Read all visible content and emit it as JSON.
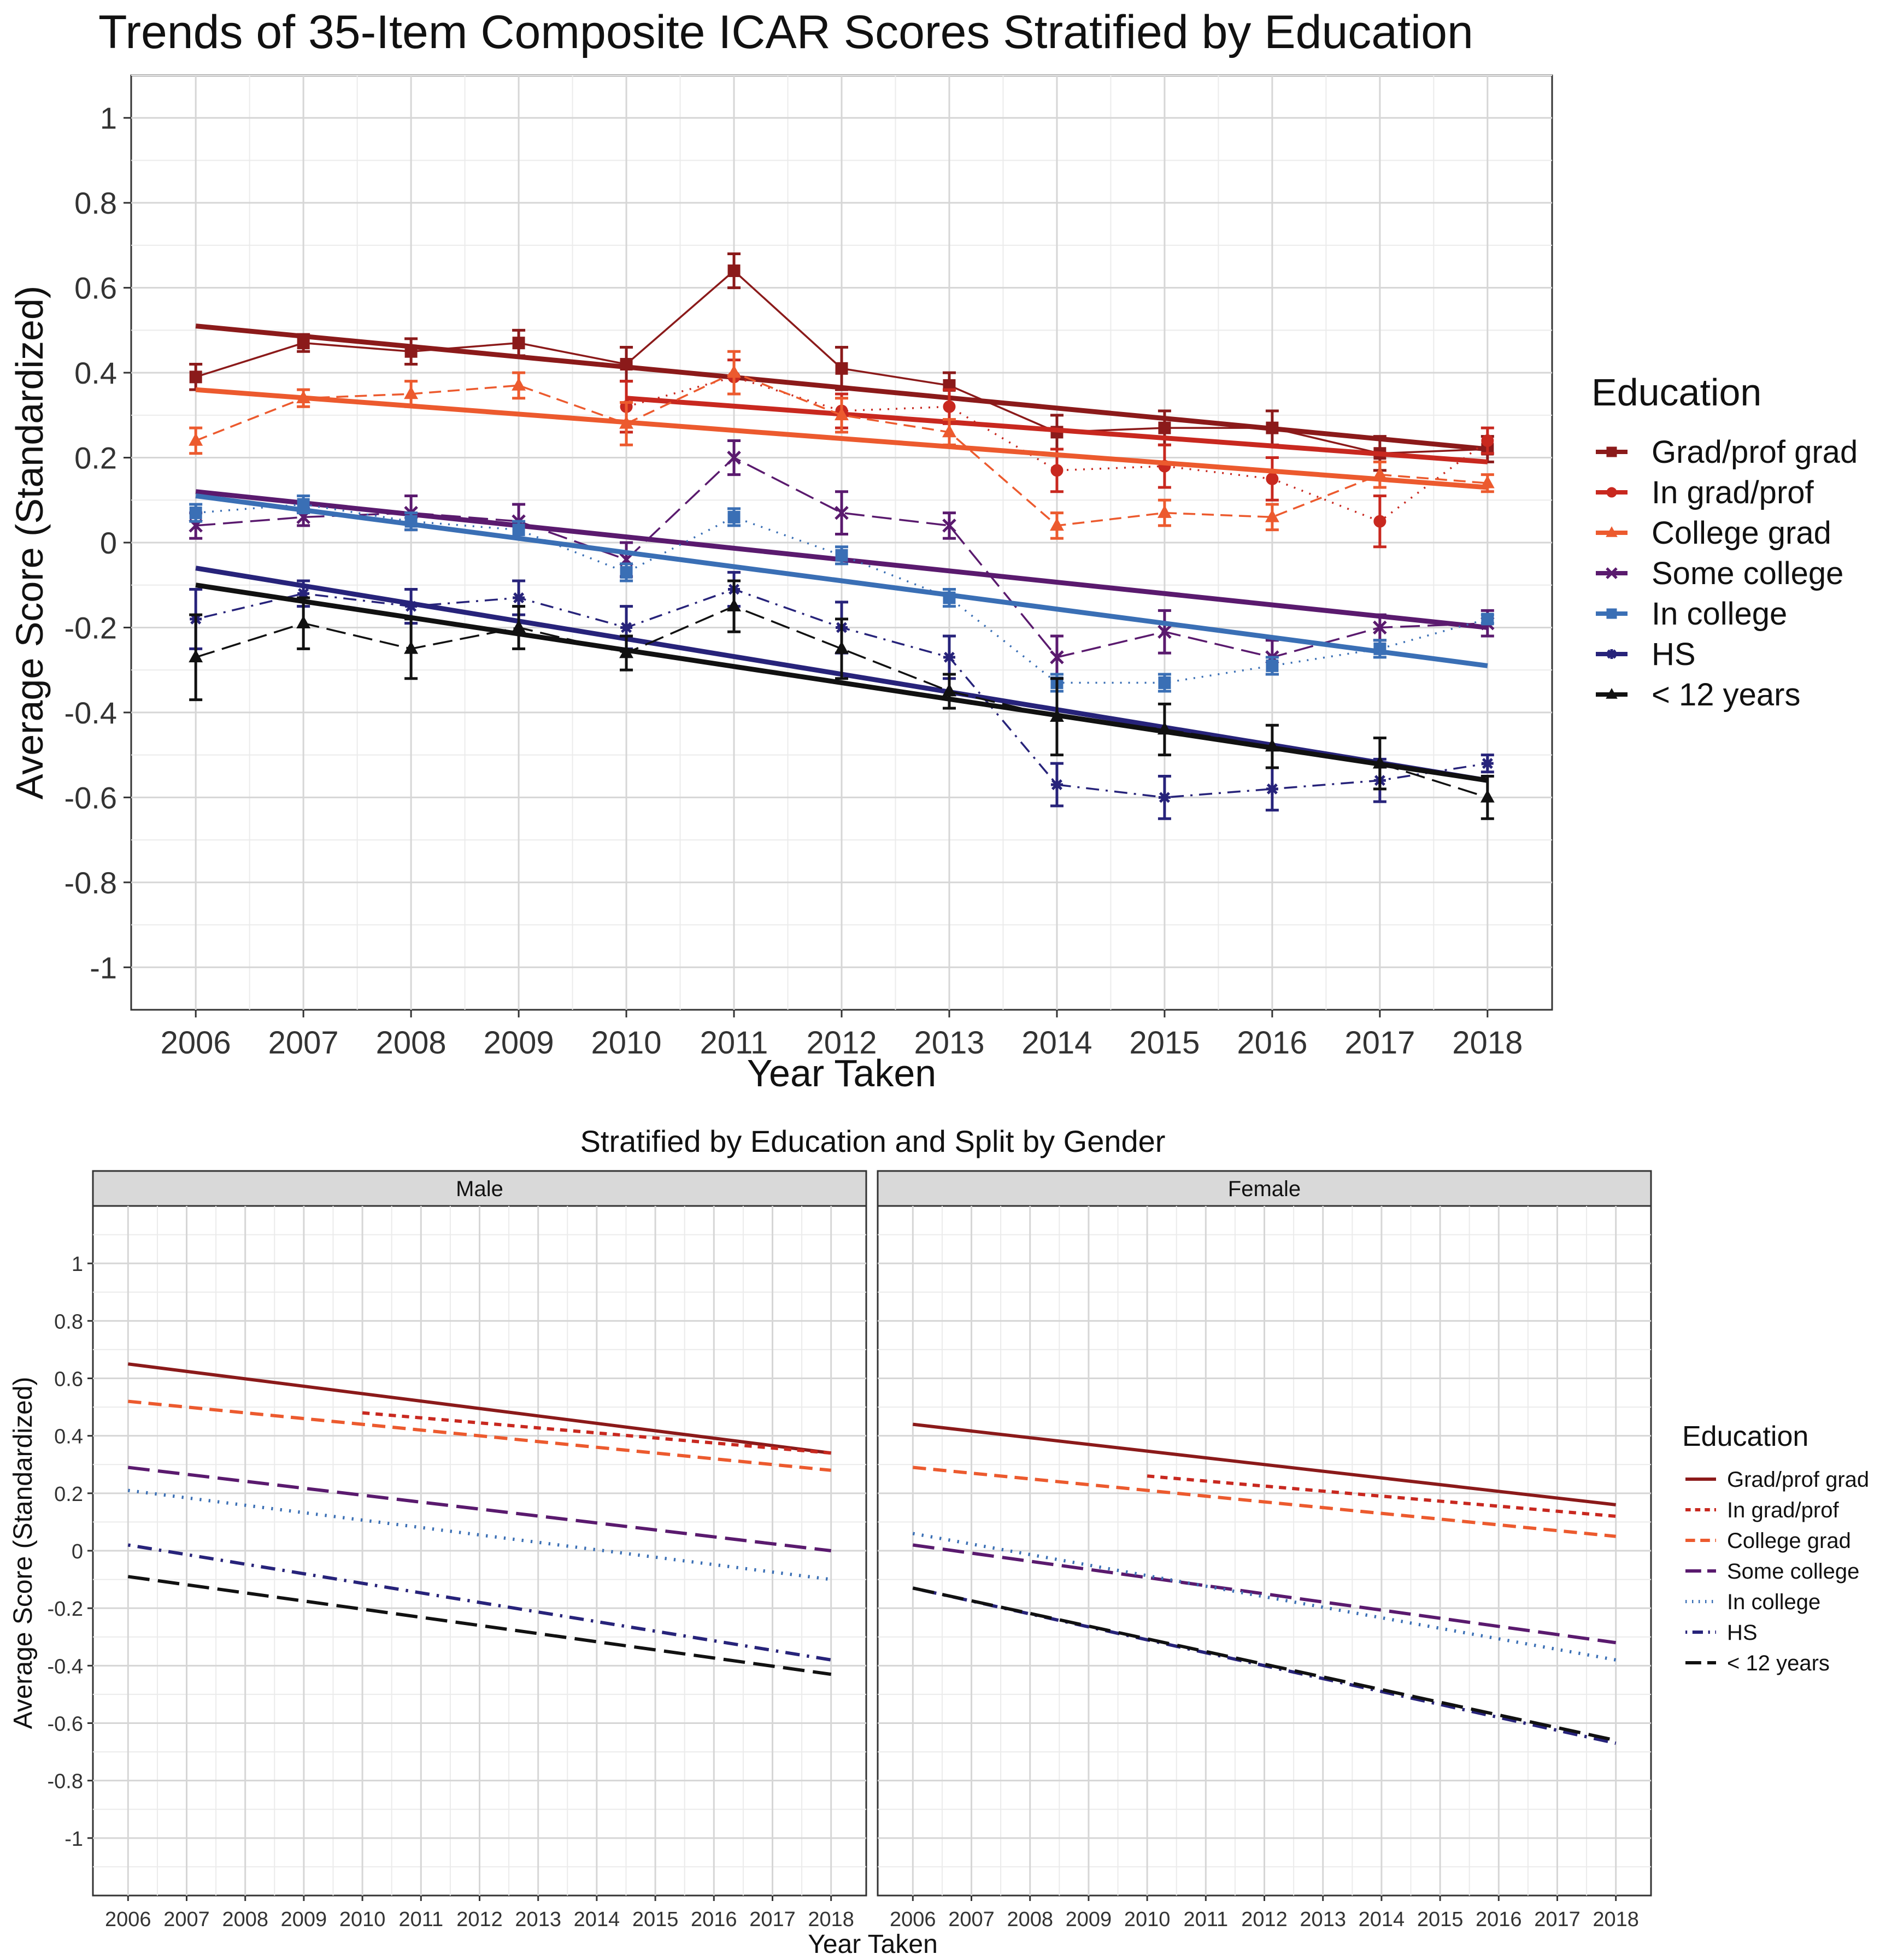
{
  "colors": {
    "Grad/prof grad": "#8b1a1a",
    "In grad/prof": "#c8281f",
    "College grad": "#ec5a2e",
    "Some college": "#5a1a6e",
    "In college": "#3a6fb5",
    "HS": "#27237a",
    "< 12 years": "#111111"
  },
  "chart_data": [
    {
      "type": "line",
      "title": "Trends of 35-Item Composite ICAR Scores Stratified by Education",
      "xlabel": "Year Taken",
      "ylabel": "Average Score (Standardized)",
      "x": [
        2006,
        2007,
        2008,
        2009,
        2010,
        2011,
        2012,
        2013,
        2014,
        2015,
        2016,
        2017,
        2018
      ],
      "xlim": [
        2005.4,
        2018.6
      ],
      "ylim": [
        -1.1,
        1.1
      ],
      "yticks": [
        1,
        0.8,
        0.6,
        0.4,
        0.2,
        0,
        -0.2,
        -0.4,
        -0.6,
        -0.8,
        -1
      ],
      "ytick_labels": [
        "1",
        "0.8",
        "0.6",
        "0.4",
        "0.2",
        "0",
        "-0.2",
        "-0.4",
        "-0.6",
        "-0.8",
        "-1"
      ],
      "grid": true,
      "legend_title": "Education",
      "legend_position": "right",
      "series": [
        {
          "name": "Grad/prof grad",
          "marker": "square",
          "dash": "solid",
          "x": [
            2006,
            2007,
            2008,
            2009,
            2010,
            2011,
            2012,
            2013,
            2014,
            2015,
            2016,
            2017,
            2018
          ],
          "values": [
            0.39,
            0.47,
            0.45,
            0.47,
            0.42,
            0.64,
            0.41,
            0.37,
            0.26,
            0.27,
            0.27,
            0.21,
            0.22
          ],
          "errors": [
            0.03,
            0.02,
            0.03,
            0.03,
            0.04,
            0.04,
            0.05,
            0.03,
            0.04,
            0.04,
            0.04,
            0.04,
            0.03
          ],
          "trend": [
            0.51,
            0.22
          ]
        },
        {
          "name": "In grad/prof",
          "marker": "circle",
          "dash": "dotted",
          "x": [
            2010,
            2011,
            2012,
            2013,
            2014,
            2015,
            2016,
            2017,
            2018
          ],
          "values": [
            0.32,
            0.39,
            0.31,
            0.32,
            0.17,
            0.18,
            0.15,
            0.05,
            0.24
          ],
          "errors": [
            0.06,
            0.04,
            0.04,
            0.04,
            0.05,
            0.05,
            0.05,
            0.06,
            0.03
          ],
          "trend": [
            0.34,
            0.19
          ]
        },
        {
          "name": "College grad",
          "marker": "triangle",
          "dash": "dashed",
          "x": [
            2006,
            2007,
            2008,
            2009,
            2010,
            2011,
            2012,
            2013,
            2014,
            2015,
            2016,
            2017,
            2018
          ],
          "values": [
            0.24,
            0.34,
            0.35,
            0.37,
            0.28,
            0.4,
            0.3,
            0.26,
            0.04,
            0.07,
            0.06,
            0.16,
            0.14
          ],
          "errors": [
            0.03,
            0.02,
            0.03,
            0.03,
            0.05,
            0.05,
            0.04,
            0.03,
            0.03,
            0.03,
            0.03,
            0.03,
            0.02
          ],
          "trend": [
            0.36,
            0.13
          ]
        },
        {
          "name": "Some college",
          "marker": "cross",
          "dash": "longdash",
          "x": [
            2006,
            2007,
            2008,
            2009,
            2010,
            2011,
            2012,
            2013,
            2014,
            2015,
            2016,
            2017,
            2018
          ],
          "values": [
            0.04,
            0.06,
            0.07,
            0.05,
            -0.04,
            0.2,
            0.07,
            0.04,
            -0.27,
            -0.21,
            -0.27,
            -0.2,
            -0.19
          ],
          "errors": [
            0.03,
            0.02,
            0.04,
            0.04,
            0.04,
            0.04,
            0.05,
            0.03,
            0.05,
            0.05,
            0.04,
            0.03,
            0.03
          ],
          "trend": [
            0.12,
            -0.2
          ]
        },
        {
          "name": "In college",
          "marker": "square",
          "dash": "dotted",
          "x": [
            2006,
            2007,
            2008,
            2009,
            2010,
            2011,
            2012,
            2013,
            2014,
            2015,
            2016,
            2017,
            2018
          ],
          "values": [
            0.07,
            0.09,
            0.05,
            0.03,
            -0.07,
            0.06,
            -0.03,
            -0.13,
            -0.33,
            -0.33,
            -0.29,
            -0.25,
            -0.18
          ],
          "errors": [
            0.02,
            0.02,
            0.02,
            0.02,
            0.02,
            0.02,
            0.02,
            0.02,
            0.02,
            0.02,
            0.02,
            0.02,
            0.01
          ],
          "trend": [
            0.11,
            -0.29
          ]
        },
        {
          "name": "HS",
          "marker": "star",
          "dash": "dotdash",
          "x": [
            2006,
            2007,
            2008,
            2009,
            2010,
            2011,
            2012,
            2013,
            2014,
            2015,
            2016,
            2017,
            2018
          ],
          "values": [
            -0.18,
            -0.12,
            -0.15,
            -0.13,
            -0.2,
            -0.11,
            -0.2,
            -0.27,
            -0.57,
            -0.6,
            -0.58,
            -0.56,
            -0.52
          ],
          "errors": [
            0.07,
            0.03,
            0.04,
            0.04,
            0.05,
            0.04,
            0.06,
            0.05,
            0.05,
            0.05,
            0.05,
            0.05,
            0.02
          ],
          "trend": [
            -0.06,
            -0.56
          ]
        },
        {
          "name": "< 12 years",
          "marker": "triangle",
          "dash": "longdash",
          "x": [
            2006,
            2007,
            2008,
            2009,
            2010,
            2011,
            2012,
            2013,
            2014,
            2015,
            2016,
            2017,
            2018
          ],
          "values": [
            -0.27,
            -0.19,
            -0.25,
            -0.2,
            -0.26,
            -0.15,
            -0.25,
            -0.35,
            -0.41,
            -0.44,
            -0.48,
            -0.52,
            -0.6
          ],
          "errors": [
            0.1,
            0.06,
            0.07,
            0.05,
            0.04,
            0.06,
            0.07,
            0.04,
            0.09,
            0.06,
            0.05,
            0.06,
            0.05
          ],
          "trend": [
            -0.1,
            -0.56
          ]
        }
      ]
    },
    {
      "type": "line",
      "title": "Stratified by Education and Split by Gender",
      "xlabel": "Year Taken",
      "ylabel": "Average Score (Standardized)",
      "x": [
        2006,
        2007,
        2008,
        2009,
        2010,
        2011,
        2012,
        2013,
        2014,
        2015,
        2016,
        2017,
        2018
      ],
      "xlim": [
        2005.4,
        2018.6
      ],
      "ylim": [
        -1.2,
        1.2
      ],
      "yticks": [
        1,
        0.8,
        0.6,
        0.4,
        0.2,
        0,
        -0.2,
        -0.4,
        -0.6,
        -0.8,
        -1
      ],
      "ytick_labels": [
        "1",
        "0.8",
        "0.6",
        "0.4",
        "0.2",
        "0",
        "-0.2",
        "-0.4",
        "-0.6",
        "-0.8",
        "-1"
      ],
      "grid": true,
      "legend_title": "Education",
      "legend_position": "right",
      "legend_items": [
        {
          "label": "Grad/prof grad",
          "dash": "solid"
        },
        {
          "label": "In grad/prof",
          "dash": "shortdash"
        },
        {
          "label": "College grad",
          "dash": "dashed"
        },
        {
          "label": "Some college",
          "dash": "longdash"
        },
        {
          "label": "In college",
          "dash": "dotted"
        },
        {
          "label": "HS",
          "dash": "dotdash"
        },
        {
          "label": "< 12 years",
          "dash": "longdash"
        }
      ],
      "panels": [
        {
          "label": "Male",
          "series": [
            {
              "name": "Grad/prof grad",
              "dash": "solid",
              "x": [
                2006,
                2018
              ],
              "values": [
                0.65,
                0.34
              ]
            },
            {
              "name": "In grad/prof",
              "dash": "shortdash",
              "x": [
                2010,
                2018
              ],
              "values": [
                0.48,
                0.34
              ]
            },
            {
              "name": "College grad",
              "dash": "dashed",
              "x": [
                2006,
                2018
              ],
              "values": [
                0.52,
                0.28
              ]
            },
            {
              "name": "Some college",
              "dash": "longdash",
              "x": [
                2006,
                2018
              ],
              "values": [
                0.29,
                0.0
              ]
            },
            {
              "name": "In college",
              "dash": "dotted",
              "x": [
                2006,
                2018
              ],
              "values": [
                0.21,
                -0.1
              ]
            },
            {
              "name": "HS",
              "dash": "dotdash",
              "x": [
                2006,
                2018
              ],
              "values": [
                0.02,
                -0.38
              ]
            },
            {
              "name": "< 12 years",
              "dash": "longdash",
              "x": [
                2006,
                2018
              ],
              "values": [
                -0.09,
                -0.43
              ]
            }
          ]
        },
        {
          "label": "Female",
          "series": [
            {
              "name": "Grad/prof grad",
              "dash": "solid",
              "x": [
                2006,
                2018
              ],
              "values": [
                0.44,
                0.16
              ]
            },
            {
              "name": "In grad/prof",
              "dash": "shortdash",
              "x": [
                2010,
                2018
              ],
              "values": [
                0.26,
                0.12
              ]
            },
            {
              "name": "College grad",
              "dash": "dashed",
              "x": [
                2006,
                2018
              ],
              "values": [
                0.29,
                0.05
              ]
            },
            {
              "name": "Some college",
              "dash": "longdash",
              "x": [
                2006,
                2018
              ],
              "values": [
                0.02,
                -0.32
              ]
            },
            {
              "name": "In college",
              "dash": "dotted",
              "x": [
                2006,
                2018
              ],
              "values": [
                0.06,
                -0.38
              ]
            },
            {
              "name": "HS",
              "dash": "dotdash",
              "x": [
                2006,
                2018
              ],
              "values": [
                -0.13,
                -0.67
              ]
            },
            {
              "name": "< 12 years",
              "dash": "longdash",
              "x": [
                2006,
                2018
              ],
              "values": [
                -0.13,
                -0.66
              ]
            }
          ]
        }
      ]
    }
  ]
}
